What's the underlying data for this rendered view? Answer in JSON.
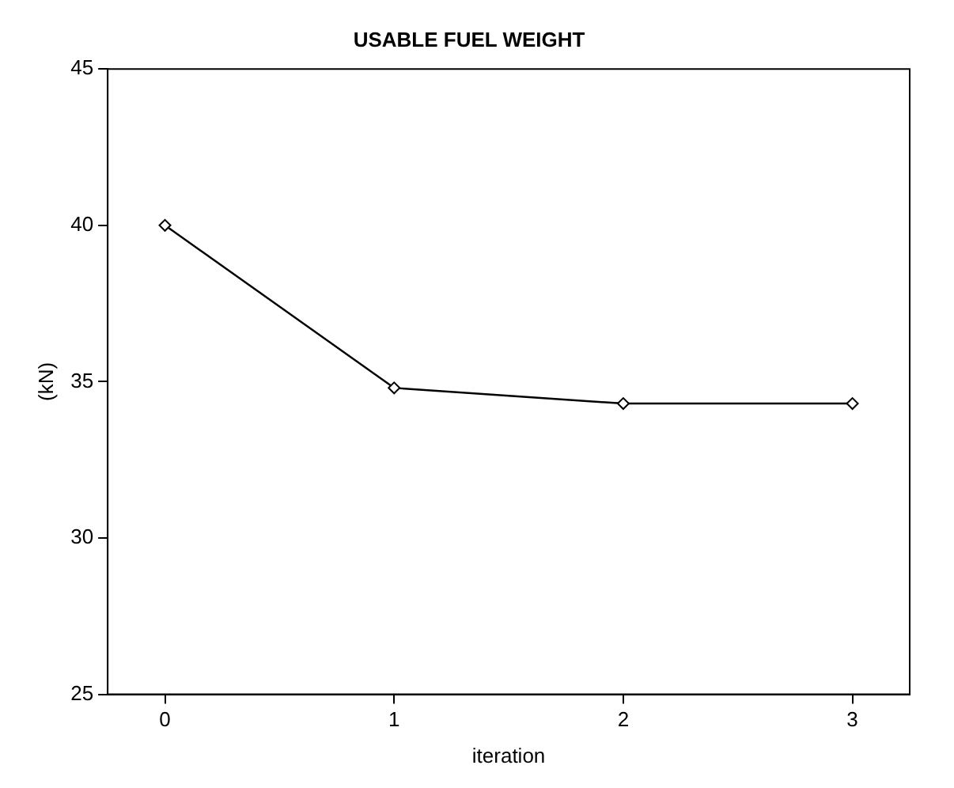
{
  "chart_data": {
    "type": "line",
    "title": "USABLE FUEL WEIGHT",
    "xlabel": "iteration",
    "ylabel": "(kN)",
    "x": [
      0,
      1,
      2,
      3
    ],
    "series": [
      {
        "color": "#000000",
        "values": [
          40,
          34.8,
          34.3,
          34.3
        ]
      }
    ],
    "xlim": [
      -0.25,
      3.25
    ],
    "xticks": [
      0,
      1,
      2,
      3
    ],
    "ylim": [
      25,
      45
    ],
    "yticks": [
      25,
      30,
      35,
      40,
      45
    ],
    "grid": false,
    "legend": false,
    "marker": "diamond",
    "line_style": "solid"
  }
}
